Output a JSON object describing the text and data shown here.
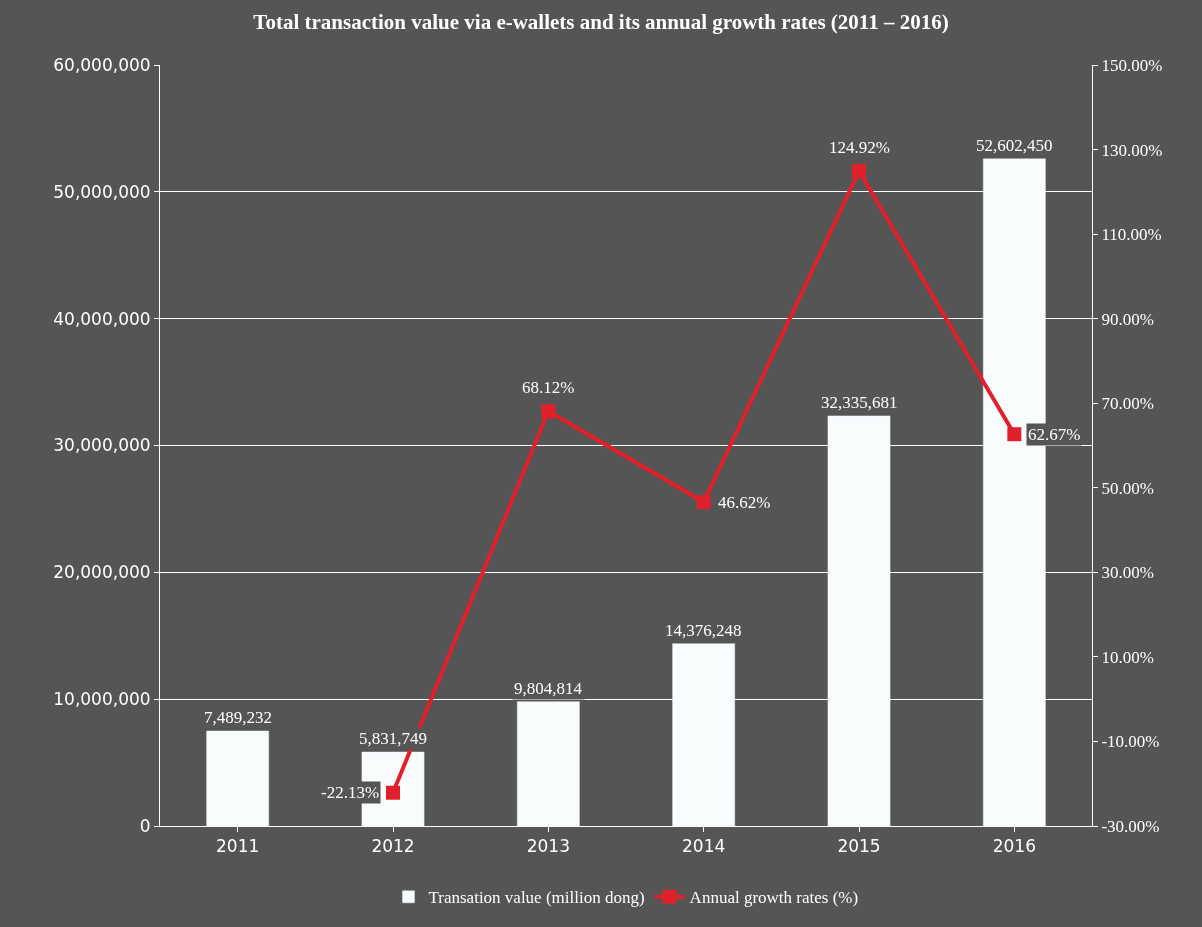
{
  "chart_data": {
    "type": "bar",
    "title": "Total transaction value via e-wallets and its annual growth rates (2011 – 2016)",
    "categories": [
      "2011",
      "2012",
      "2013",
      "2014",
      "2015",
      "2016"
    ],
    "series": [
      {
        "name": "Transation value (million dong)",
        "color": "#f8fcfc",
        "values": [
          7489232,
          5831749,
          9804814,
          14376248,
          32335681,
          52602450
        ],
        "value_labels": [
          "7,489,232",
          "5,831,749",
          "9,804,814",
          "14,376,248",
          "32,335,681",
          "52,602,450"
        ]
      },
      {
        "name": "Annual growth rates (%)",
        "type": "line",
        "axis": "y2",
        "color": "#e0202a",
        "marker": "square",
        "values": [
          null,
          -22.13,
          68.12,
          46.62,
          124.92,
          62.67
        ],
        "value_labels": [
          null,
          "-22.13%",
          "68.12%",
          "46.62%",
          "124.92%",
          "62.67%"
        ]
      }
    ],
    "ylim": [
      0,
      60000000
    ],
    "yticks": [
      {
        "value": 0,
        "label": "0"
      },
      {
        "value": 10000000,
        "label": "10,000,000"
      },
      {
        "value": 20000000,
        "label": "20,000,000"
      },
      {
        "value": 30000000,
        "label": "30,000,000"
      },
      {
        "value": 40000000,
        "label": "40,000,000"
      },
      {
        "value": 50000000,
        "label": "50,000,000"
      },
      {
        "value": 60000000,
        "label": "60,000,000"
      }
    ],
    "y2lim": [
      -30,
      150
    ],
    "y2ticks": [
      {
        "value": -30,
        "label": "-30.00%"
      },
      {
        "value": -10,
        "label": "-10.00%"
      },
      {
        "value": 10,
        "label": "10.00%"
      },
      {
        "value": 30,
        "label": "30.00%"
      },
      {
        "value": 50,
        "label": "50.00%"
      },
      {
        "value": 70,
        "label": "70.00%"
      },
      {
        "value": 90,
        "label": "90.00%"
      },
      {
        "value": 110,
        "label": "110.00%"
      },
      {
        "value": 130,
        "label": "130.00%"
      },
      {
        "value": 150,
        "label": "150.00%"
      }
    ],
    "grid": "y",
    "legend": "bottom"
  }
}
